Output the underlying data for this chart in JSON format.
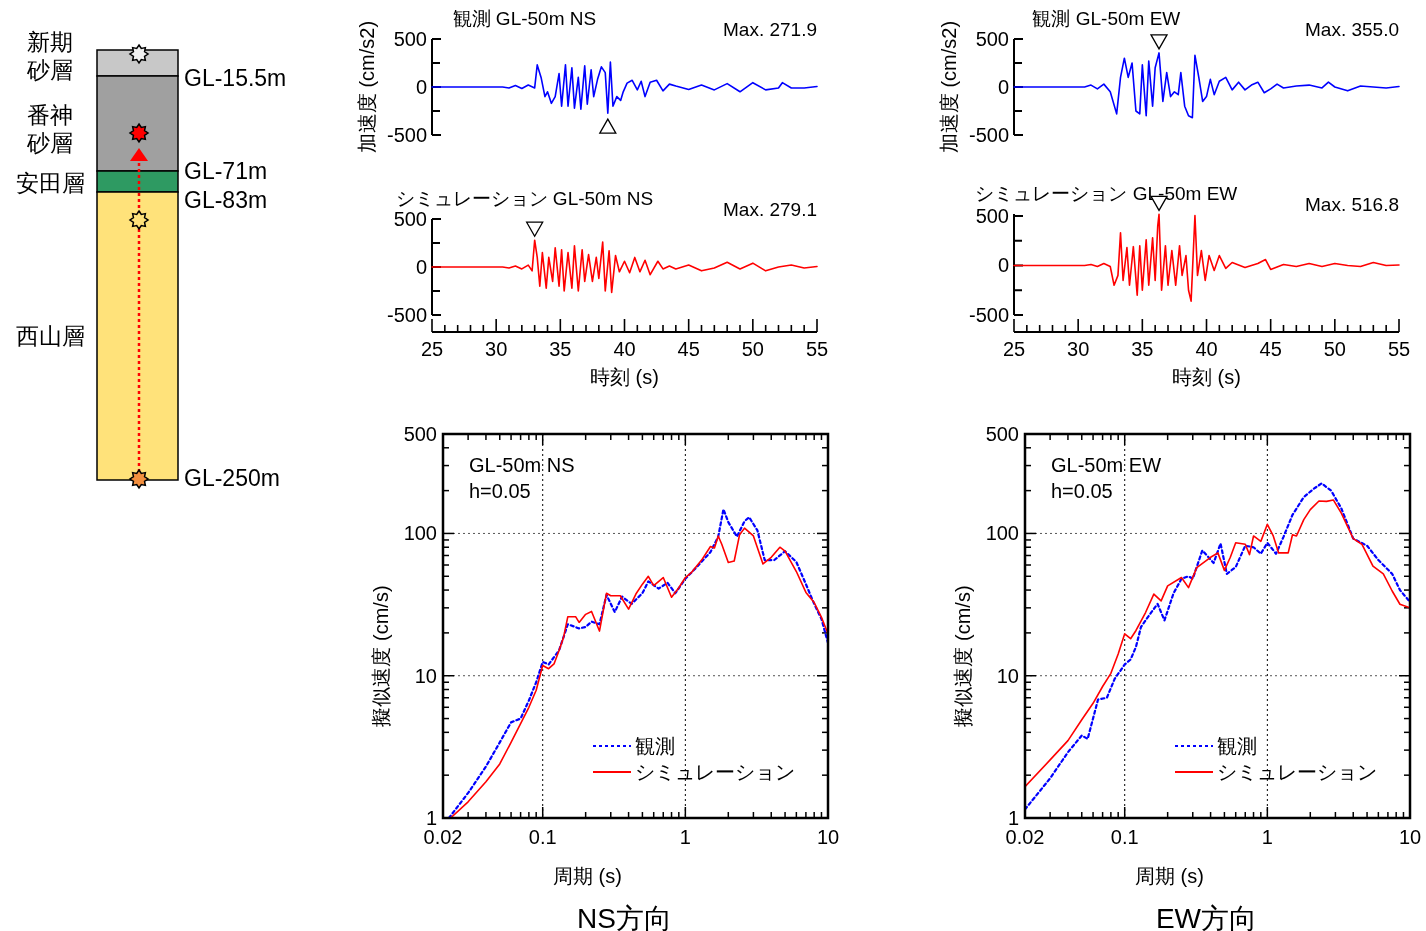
{
  "chart_data": [
    {
      "type": "line",
      "title": "観測 GL-50m NS",
      "ylabel": "加速度 (cm/s2)",
      "tick_labels": "y",
      "xlim": [
        25,
        55
      ],
      "ylim": [
        -500,
        500
      ],
      "yticks": [
        -500,
        {
          "value": -250,
          "label": null
        },
        0,
        {
          "value": 250,
          "label": null
        },
        500
      ],
      "annotations": [
        "Max. 271.9"
      ],
      "series": [
        {
          "color": "#0000ff",
          "x": [
            25,
            30.5,
            31,
            31.5,
            32,
            32.5,
            33,
            33.2,
            33.5,
            33.8,
            34,
            34.3,
            34.6,
            34.9,
            35.1,
            35.4,
            35.6,
            35.9,
            36.1,
            36.4,
            36.6,
            36.9,
            37.1,
            37.4,
            37.6,
            37.9,
            38.2,
            38.5,
            38.7,
            38.9,
            39.1,
            39.4,
            39.7,
            39.9,
            40.2,
            40.6,
            41,
            41.3,
            41.6,
            42,
            42.5,
            43,
            43.5,
            44,
            45,
            46,
            47,
            48,
            49,
            50,
            51,
            52,
            52.3,
            53,
            54,
            55
          ],
          "values": [
            0,
            0,
            -10,
            15,
            -15,
            20,
            -10,
            230,
            100,
            -100,
            -50,
            -170,
            -100,
            140,
            -200,
            230,
            -200,
            200,
            -220,
            100,
            -230,
            220,
            -180,
            180,
            -100,
            80,
            210,
            150,
            -271.9,
            260,
            -200,
            -100,
            -140,
            -50,
            40,
            70,
            -30,
            60,
            -100,
            50,
            70,
            -40,
            30,
            10,
            -25,
            20,
            -30,
            35,
            -50,
            45,
            -30,
            -10,
            45,
            -10,
            -10,
            5
          ]
        }
      ]
    },
    {
      "type": "line",
      "title": "シミュレーション GL-50m NS",
      "xlabel": "時刻 (s)",
      "xlim": [
        25,
        55
      ],
      "ylim": [
        -500,
        500
      ],
      "xticks": [
        25,
        {
          "value": 26,
          "label": null
        },
        {
          "value": 27,
          "label": null
        },
        {
          "value": 28,
          "label": null
        },
        {
          "value": 29,
          "label": null
        },
        30,
        {
          "value": 31,
          "label": null
        },
        {
          "value": 32,
          "label": null
        },
        {
          "value": 33,
          "label": null
        },
        {
          "value": 34,
          "label": null
        },
        35,
        {
          "value": 36,
          "label": null
        },
        {
          "value": 37,
          "label": null
        },
        {
          "value": 38,
          "label": null
        },
        {
          "value": 39,
          "label": null
        },
        40,
        {
          "value": 41,
          "label": null
        },
        {
          "value": 42,
          "label": null
        },
        {
          "value": 43,
          "label": null
        },
        {
          "value": 44,
          "label": null
        },
        45,
        {
          "value": 46,
          "label": null
        },
        {
          "value": 47,
          "label": null
        },
        {
          "value": 48,
          "label": null
        },
        {
          "value": 49,
          "label": null
        },
        50,
        {
          "value": 51,
          "label": null
        },
        {
          "value": 52,
          "label": null
        },
        {
          "value": 53,
          "label": null
        },
        {
          "value": 54,
          "label": null
        },
        55
      ],
      "yticks": [
        -500,
        {
          "value": -250,
          "label": null
        },
        0,
        {
          "value": 250,
          "label": null
        },
        500
      ],
      "annotations": [
        "Max. 279.1"
      ],
      "series": [
        {
          "color": "#ff0000",
          "x": [
            25,
            30.5,
            31,
            31.5,
            32,
            32.5,
            32.8,
            33,
            33.2,
            33.4,
            33.6,
            33.9,
            34.1,
            34.4,
            34.6,
            34.9,
            35.1,
            35.3,
            35.6,
            35.9,
            36.1,
            36.4,
            36.7,
            36.9,
            37.2,
            37.5,
            37.8,
            38,
            38.3,
            38.5,
            38.8,
            39,
            39.3,
            39.6,
            40,
            40.4,
            40.8,
            41.2,
            41.6,
            42,
            42.6,
            43,
            43.5,
            44,
            45,
            46,
            47,
            48,
            49,
            50,
            51,
            52,
            53,
            54,
            55
          ],
          "values": [
            0,
            0,
            -10,
            10,
            -20,
            20,
            -40,
            279.1,
            100,
            -200,
            150,
            -220,
            100,
            -150,
            200,
            -200,
            180,
            -250,
            150,
            -220,
            220,
            -250,
            180,
            -150,
            130,
            -150,
            100,
            -120,
            260,
            -250,
            170,
            -265,
            120,
            -50,
            60,
            -60,
            100,
            -50,
            70,
            -80,
            60,
            -20,
            10,
            -20,
            20,
            -40,
            -10,
            50,
            -20,
            40,
            -40,
            0,
            20,
            -10,
            5
          ]
        }
      ]
    },
    {
      "type": "line",
      "title": "観測 GL-50m EW",
      "ylabel": "加速度 (cm/s2)",
      "tick_labels": "y",
      "xlim": [
        25,
        55
      ],
      "ylim": [
        -500,
        500
      ],
      "yticks": [
        -500,
        {
          "value": -250,
          "label": null
        },
        0,
        {
          "value": 250,
          "label": null
        },
        500
      ],
      "annotations": [
        "Max. 355.0"
      ],
      "series": [
        {
          "color": "#0000ff",
          "x": [
            25,
            30.5,
            31,
            31.5,
            32,
            32.5,
            33,
            33.3,
            33.6,
            33.9,
            34.2,
            34.5,
            34.8,
            35,
            35.3,
            35.5,
            35.8,
            36,
            36.3,
            36.6,
            36.9,
            37.2,
            37.5,
            37.8,
            38,
            38.3,
            38.6,
            38.9,
            39.1,
            39.4,
            39.7,
            40,
            40.3,
            40.6,
            41,
            41.5,
            42,
            42.5,
            43,
            43.5,
            44,
            44.5,
            45,
            45.5,
            46,
            47,
            48,
            49,
            49.5,
            50,
            51,
            52,
            53,
            54,
            55
          ],
          "values": [
            0,
            0,
            20,
            -20,
            30,
            -50,
            -280,
            100,
            300,
            100,
            250,
            -250,
            -280,
            230,
            -300,
            270,
            -200,
            200,
            355.0,
            -150,
            150,
            -100,
            -50,
            -80,
            150,
            -200,
            -300,
            -320,
            330,
            100,
            -150,
            -100,
            80,
            -80,
            60,
            100,
            -30,
            50,
            -30,
            20,
            50,
            -60,
            -20,
            30,
            -10,
            10,
            20,
            -10,
            50,
            0,
            -40,
            10,
            0,
            -10,
            5
          ]
        }
      ]
    },
    {
      "type": "line",
      "title": "シミュレーション GL-50m EW",
      "xlabel": "時刻 (s)",
      "xlim": [
        25,
        55
      ],
      "ylim": [
        -500,
        520
      ],
      "xticks": [
        25,
        {
          "value": 26,
          "label": null
        },
        {
          "value": 27,
          "label": null
        },
        {
          "value": 28,
          "label": null
        },
        {
          "value": 29,
          "label": null
        },
        30,
        {
          "value": 31,
          "label": null
        },
        {
          "value": 32,
          "label": null
        },
        {
          "value": 33,
          "label": null
        },
        {
          "value": 34,
          "label": null
        },
        35,
        {
          "value": 36,
          "label": null
        },
        {
          "value": 37,
          "label": null
        },
        {
          "value": 38,
          "label": null
        },
        {
          "value": 39,
          "label": null
        },
        40,
        {
          "value": 41,
          "label": null
        },
        {
          "value": 42,
          "label": null
        },
        {
          "value": 43,
          "label": null
        },
        {
          "value": 44,
          "label": null
        },
        45,
        {
          "value": 46,
          "label": null
        },
        {
          "value": 47,
          "label": null
        },
        {
          "value": 48,
          "label": null
        },
        {
          "value": 49,
          "label": null
        },
        50,
        {
          "value": 51,
          "label": null
        },
        {
          "value": 52,
          "label": null
        },
        {
          "value": 53,
          "label": null
        },
        {
          "value": 54,
          "label": null
        },
        55
      ],
      "yticks": [
        -500,
        {
          "value": -250,
          "label": null
        },
        0,
        {
          "value": 250,
          "label": null
        },
        500
      ],
      "annotations": [
        "Max. 516.8"
      ],
      "series": [
        {
          "color": "#ff0000",
          "x": [
            25,
            30.5,
            31,
            31.5,
            32,
            32.5,
            32.8,
            33.1,
            33.3,
            33.5,
            33.8,
            34,
            34.3,
            34.6,
            34.8,
            35,
            35.3,
            35.5,
            35.8,
            36,
            36.2,
            36.3,
            36.5,
            36.8,
            37,
            37.3,
            37.6,
            37.9,
            38.1,
            38.4,
            38.6,
            38.8,
            39.1,
            39.3,
            39.6,
            39.9,
            40.2,
            40.6,
            41,
            41.5,
            42,
            43,
            44,
            44.6,
            45,
            46,
            47,
            48,
            49,
            50,
            51,
            52,
            53,
            54,
            55
          ],
          "values": [
            0,
            0,
            10,
            -10,
            20,
            -10,
            -200,
            -100,
            330,
            -150,
            180,
            -200,
            190,
            -300,
            200,
            -250,
            260,
            -200,
            280,
            -150,
            400,
            516.8,
            -250,
            200,
            -200,
            150,
            -200,
            200,
            -100,
            100,
            -250,
            -360,
            505,
            -100,
            150,
            -150,
            100,
            -50,
            100,
            -30,
            30,
            -20,
            20,
            60,
            -40,
            10,
            -10,
            20,
            -10,
            20,
            0,
            -10,
            30,
            0,
            5
          ]
        }
      ]
    },
    {
      "type": "line",
      "xlabel": "周期 (s)",
      "ylabel": "擬似速度 (cm/s)",
      "log": "xy",
      "grid": true,
      "legend": "bottom right",
      "xlim": [
        0.02,
        10
      ],
      "ylim": [
        1,
        500
      ],
      "xticks": [
        0.02,
        {
          "value": 0.03,
          "label": null
        },
        {
          "value": 0.04,
          "label": null
        },
        {
          "value": 0.05,
          "label": null
        },
        {
          "value": 0.06,
          "label": null
        },
        {
          "value": 0.07,
          "label": null
        },
        {
          "value": 0.08,
          "label": null
        },
        {
          "value": 0.09,
          "label": null
        },
        0.1,
        {
          "value": 0.2,
          "label": null
        },
        {
          "value": 0.3,
          "label": null
        },
        {
          "value": 0.4,
          "label": null
        },
        {
          "value": 0.5,
          "label": null
        },
        {
          "value": 0.6,
          "label": null
        },
        {
          "value": 0.7,
          "label": null
        },
        {
          "value": 0.8,
          "label": null
        },
        {
          "value": 0.9,
          "label": null
        },
        1,
        {
          "value": 2,
          "label": null
        },
        {
          "value": 3,
          "label": null
        },
        {
          "value": 4,
          "label": null
        },
        {
          "value": 5,
          "label": null
        },
        {
          "value": 6,
          "label": null
        },
        {
          "value": 7,
          "label": null
        },
        {
          "value": 8,
          "label": null
        },
        {
          "value": 9,
          "label": null
        },
        10
      ],
      "yticks": [
        1,
        {
          "value": 2,
          "label": null
        },
        {
          "value": 3,
          "label": null
        },
        {
          "value": 4,
          "label": null
        },
        {
          "value": 5,
          "label": null
        },
        {
          "value": 6,
          "label": null
        },
        {
          "value": 7,
          "label": null
        },
        {
          "value": 8,
          "label": null
        },
        {
          "value": 9,
          "label": null
        },
        10,
        {
          "value": 20,
          "label": null
        },
        {
          "value": 30,
          "label": null
        },
        {
          "value": 40,
          "label": null
        },
        {
          "value": 50,
          "label": null
        },
        {
          "value": 60,
          "label": null
        },
        {
          "value": 70,
          "label": null
        },
        {
          "value": 80,
          "label": null
        },
        {
          "value": 90,
          "label": null
        },
        100,
        {
          "value": 200,
          "label": null
        },
        {
          "value": 300,
          "label": null
        },
        {
          "value": 400,
          "label": null
        },
        500
      ],
      "annotations": [
        "GL-50m NS",
        "h=0.05",
        "NS方向"
      ],
      "series": [
        {
          "name": "観測",
          "color": "#0000ff",
          "line_style": "dotted",
          "x": [
            0.022,
            0.03,
            0.04,
            0.05,
            0.06,
            0.07,
            0.08,
            0.09,
            0.1,
            0.11,
            0.12,
            0.13,
            0.15,
            0.18,
            0.2,
            0.22,
            0.25,
            0.28,
            0.32,
            0.36,
            0.42,
            0.5,
            0.55,
            0.65,
            0.75,
            0.85,
            1.0,
            1.2,
            1.5,
            1.7,
            1.85,
            2.0,
            2.3,
            2.6,
            2.8,
            3.2,
            3.6,
            4.2,
            5.0,
            6.0,
            7.0,
            8.0,
            9.0,
            10
          ],
          "values": [
            1.0,
            1.5,
            2.3,
            3.4,
            4.7,
            5.0,
            6.7,
            9.0,
            12.5,
            12.0,
            13.5,
            15,
            23,
            21.5,
            22,
            24,
            23,
            37,
            28,
            36,
            32,
            38,
            46,
            41,
            45,
            38,
            48,
            58,
            74,
            95,
            148,
            120,
            95,
            122,
            130,
            105,
            65,
            65,
            75,
            63,
            44,
            32,
            25,
            17
          ]
        },
        {
          "name": "シミュレーション",
          "color": "#ff0000",
          "line_style": "solid",
          "x": [
            0.0226,
            0.03,
            0.04,
            0.05,
            0.06,
            0.07,
            0.08,
            0.09,
            0.1,
            0.11,
            0.12,
            0.13,
            0.14,
            0.15,
            0.17,
            0.18,
            0.2,
            0.22,
            0.25,
            0.28,
            0.3,
            0.35,
            0.4,
            0.45,
            0.5,
            0.55,
            0.6,
            0.7,
            0.8,
            0.9,
            1.0,
            1.1,
            1.3,
            1.5,
            1.6,
            1.7,
            1.8,
            2.0,
            2.2,
            2.4,
            2.6,
            3.0,
            3.5,
            4.0,
            4.6,
            5.0,
            6.0,
            7.0,
            8.0,
            9.0,
            10
          ],
          "values": [
            1.0,
            1.3,
            1.8,
            2.4,
            3.4,
            4.6,
            6.0,
            7.9,
            11.8,
            11.2,
            12.1,
            15,
            18.6,
            26,
            26,
            23.7,
            27,
            28.3,
            20.6,
            38,
            36.5,
            36.5,
            29.4,
            37.5,
            44,
            50,
            43,
            49,
            35.6,
            41.5,
            49,
            53,
            65,
            81,
            79,
            96,
            84,
            62.5,
            64,
            98,
            109,
            96,
            61,
            68,
            80,
            75,
            54,
            38.5,
            32.7,
            25.7,
            19.7
          ]
        }
      ]
    },
    {
      "type": "line",
      "xlabel": "周期 (s)",
      "ylabel": "擬似速度 (cm/s)",
      "log": "xy",
      "grid": true,
      "legend": "bottom right",
      "xlim": [
        0.02,
        10
      ],
      "ylim": [
        1,
        500
      ],
      "xticks": [
        0.02,
        {
          "value": 0.03,
          "label": null
        },
        {
          "value": 0.04,
          "label": null
        },
        {
          "value": 0.05,
          "label": null
        },
        {
          "value": 0.06,
          "label": null
        },
        {
          "value": 0.07,
          "label": null
        },
        {
          "value": 0.08,
          "label": null
        },
        {
          "value": 0.09,
          "label": null
        },
        0.1,
        {
          "value": 0.2,
          "label": null
        },
        {
          "value": 0.3,
          "label": null
        },
        {
          "value": 0.4,
          "label": null
        },
        {
          "value": 0.5,
          "label": null
        },
        {
          "value": 0.6,
          "label": null
        },
        {
          "value": 0.7,
          "label": null
        },
        {
          "value": 0.8,
          "label": null
        },
        {
          "value": 0.9,
          "label": null
        },
        1,
        {
          "value": 2,
          "label": null
        },
        {
          "value": 3,
          "label": null
        },
        {
          "value": 4,
          "label": null
        },
        {
          "value": 5,
          "label": null
        },
        {
          "value": 6,
          "label": null
        },
        {
          "value": 7,
          "label": null
        },
        {
          "value": 8,
          "label": null
        },
        {
          "value": 9,
          "label": null
        },
        10
      ],
      "yticks": [
        1,
        {
          "value": 2,
          "label": null
        },
        {
          "value": 3,
          "label": null
        },
        {
          "value": 4,
          "label": null
        },
        {
          "value": 5,
          "label": null
        },
        {
          "value": 6,
          "label": null
        },
        {
          "value": 7,
          "label": null
        },
        {
          "value": 8,
          "label": null
        },
        {
          "value": 9,
          "label": null
        },
        10,
        {
          "value": 20,
          "label": null
        },
        {
          "value": 30,
          "label": null
        },
        {
          "value": 40,
          "label": null
        },
        {
          "value": 50,
          "label": null
        },
        {
          "value": 60,
          "label": null
        },
        {
          "value": 70,
          "label": null
        },
        {
          "value": 80,
          "label": null
        },
        {
          "value": 90,
          "label": null
        },
        100,
        {
          "value": 200,
          "label": null
        },
        {
          "value": 300,
          "label": null
        },
        {
          "value": 400,
          "label": null
        },
        500
      ],
      "annotations": [
        "GL-50m EW",
        "h=0.05",
        "EW方向"
      ],
      "series": [
        {
          "name": "観測",
          "color": "#0000ff",
          "line_style": "dotted",
          "x": [
            0.02,
            0.03,
            0.04,
            0.05,
            0.055,
            0.065,
            0.075,
            0.085,
            0.1,
            0.11,
            0.12,
            0.13,
            0.15,
            0.17,
            0.19,
            0.22,
            0.25,
            0.28,
            0.3,
            0.35,
            0.42,
            0.47,
            0.52,
            0.6,
            0.7,
            0.8,
            0.9,
            1.0,
            1.15,
            1.3,
            1.5,
            1.8,
            2.1,
            2.4,
            2.8,
            3.3,
            4.0,
            5.0,
            6.0,
            7.5,
            8.5,
            10
          ],
          "values": [
            1.15,
            1.9,
            2.9,
            3.8,
            3.6,
            6.8,
            7.0,
            9.5,
            12,
            13,
            16,
            22,
            27,
            32,
            24.5,
            38,
            48,
            50,
            48,
            76,
            62,
            85,
            52,
            58,
            82,
            80,
            72,
            86,
            72,
            95,
            135,
            180,
            205,
            225,
            200,
            150,
            92,
            82,
            65,
            52,
            40,
            33
          ]
        },
        {
          "name": "シミュレーション",
          "color": "#ff0000",
          "line_style": "solid",
          "x": [
            0.02,
            0.03,
            0.04,
            0.05,
            0.06,
            0.07,
            0.08,
            0.09,
            0.1,
            0.11,
            0.12,
            0.14,
            0.16,
            0.18,
            0.2,
            0.25,
            0.28,
            0.32,
            0.4,
            0.45,
            0.5,
            0.55,
            0.6,
            0.7,
            0.75,
            0.8,
            0.9,
            1.0,
            1.1,
            1.2,
            1.4,
            1.5,
            1.6,
            1.8,
            2.0,
            2.3,
            2.6,
            2.9,
            3.3,
            4.0,
            4.6,
            5.5,
            6.5,
            7.5,
            8.5,
            10
          ],
          "values": [
            1.66,
            2.56,
            3.5,
            4.9,
            6.4,
            8.4,
            10.4,
            14.2,
            19.7,
            18.2,
            20.8,
            27.8,
            37.5,
            33.6,
            42.8,
            49,
            41.6,
            57.5,
            68,
            73,
            55,
            68,
            86,
            84,
            71,
            96,
            88,
            116,
            96,
            73,
            73,
            98,
            96,
            125,
            147,
            169,
            168,
            172,
            139,
            92,
            84,
            59,
            52,
            39.4,
            31.8,
            30
          ]
        }
      ]
    },
    {
      "type": "other",
      "annotations": [
        "新期砂層",
        "番神砂層",
        "安田層",
        "西山層",
        "GL-15.5m",
        "GL-71m",
        "GL-83m",
        "GL-250m"
      ]
    }
  ]
}
